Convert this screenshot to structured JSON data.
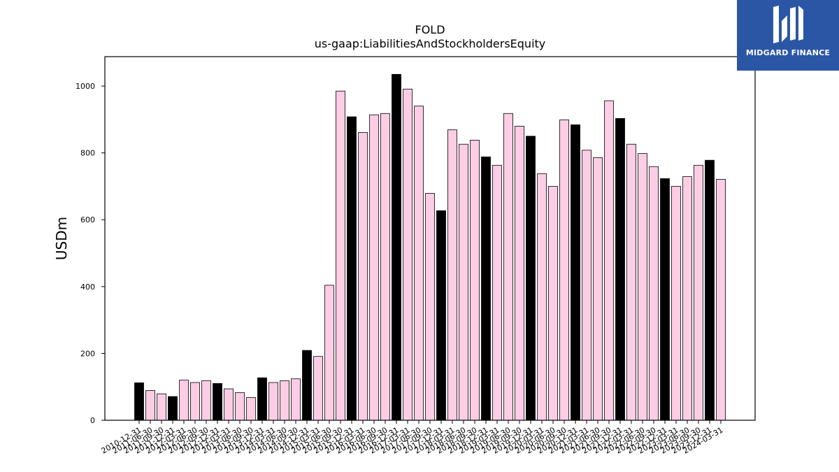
{
  "chart_data": {
    "type": "bar",
    "title": "FOLD",
    "subtitle": "us-gaap:LiabilitiesAndStockholdersEquity",
    "xlabel": "",
    "ylabel": "USDm",
    "ylim": [
      0,
      1088
    ],
    "yticks": [
      0,
      200,
      400,
      600,
      800,
      1000
    ],
    "grid": false,
    "categories": [
      "2010-12-31",
      "2011-06-30",
      "2011-09-30",
      "2011-12-31",
      "2012-03-31",
      "2012-06-30",
      "2012-09-30",
      "2012-12-31",
      "2013-03-31",
      "2013-06-30",
      "2013-09-30",
      "2013-12-31",
      "2014-03-31",
      "2014-06-30",
      "2014-09-30",
      "2014-12-31",
      "2015-03-31",
      "2015-06-30",
      "2015-09-30",
      "2015-12-31",
      "2016-03-31",
      "2016-06-30",
      "2016-09-30",
      "2016-12-31",
      "2017-03-31",
      "2017-06-30",
      "2017-09-30",
      "2017-12-31",
      "2018-03-31",
      "2018-06-30",
      "2018-09-30",
      "2018-12-31",
      "2019-03-31",
      "2019-06-30",
      "2019-09-30",
      "2019-12-31",
      "2020-03-31",
      "2020-06-30",
      "2020-09-30",
      "2020-12-31",
      "2021-03-31",
      "2021-06-30",
      "2021-09-30",
      "2021-12-31",
      "2022-03-31",
      "2022-06-30",
      "2022-09-30",
      "2022-12-31",
      "2023-03-31",
      "2023-06-30",
      "2023-09-30",
      "2023-12-31",
      "2024-03-31"
    ],
    "values": [
      112,
      89,
      79,
      71,
      120,
      113,
      118,
      110,
      94,
      83,
      68,
      127,
      113,
      118,
      124,
      209,
      191,
      404,
      985,
      908,
      861,
      914,
      918,
      1035,
      991,
      940,
      679,
      627,
      869,
      826,
      838,
      788,
      763,
      918,
      880,
      850,
      738,
      700,
      899,
      884,
      808,
      786,
      956,
      903,
      826,
      798,
      759,
      723,
      700,
      729,
      763,
      778,
      721
    ],
    "fiscal_year_end_flags": [
      1,
      0,
      0,
      1,
      0,
      0,
      0,
      1,
      0,
      0,
      0,
      1,
      0,
      0,
      0,
      1,
      0,
      0,
      0,
      1,
      0,
      0,
      0,
      1,
      0,
      0,
      0,
      1,
      0,
      0,
      0,
      1,
      0,
      0,
      0,
      1,
      0,
      0,
      0,
      1,
      0,
      0,
      0,
      1,
      0,
      0,
      0,
      1,
      0,
      0,
      0,
      1,
      0
    ],
    "colors": {
      "highlight": "#000000",
      "normal": "#fccde5",
      "edge": "#000000"
    }
  },
  "logo": {
    "text": "MIDGARD FINANCE",
    "background": "#2b56a6"
  }
}
